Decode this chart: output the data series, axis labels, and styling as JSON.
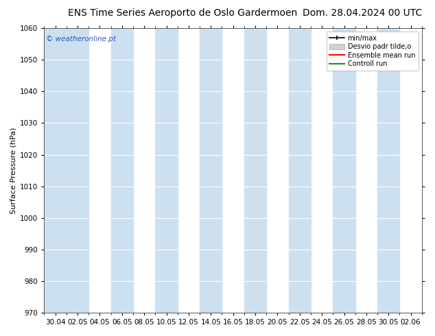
{
  "title_left": "ENS Time Series Aeroporto de Oslo Gardermoen",
  "title_right": "Dom. 28.04.2024 00 UTC",
  "ylabel": "Surface Pressure (hPa)",
  "watermark": "© weatheronline.pt",
  "ylim": [
    970,
    1060
  ],
  "yticks": [
    970,
    980,
    990,
    1000,
    1010,
    1020,
    1030,
    1040,
    1050,
    1060
  ],
  "x_tick_labels": [
    "30.04",
    "02.05",
    "04.05",
    "06.05",
    "08.05",
    "10.05",
    "12.05",
    "14.05",
    "16.05",
    "18.05",
    "20.05",
    "22.05",
    "24.05",
    "26.05",
    "28.05",
    "30.05",
    "02.06"
  ],
  "bg_color": "#ffffff",
  "plot_bg_color": "#ffffff",
  "band_color": "#cce0f0",
  "band_indices": [
    1,
    3,
    5,
    7,
    9,
    11,
    13,
    15
  ],
  "legend_labels": [
    "min/max",
    "Desvio padr tilde;o",
    "Ensemble mean run",
    "Controll run"
  ],
  "title_fontsize": 10,
  "axis_fontsize": 8,
  "tick_fontsize": 7.5,
  "watermark_color": "#2255cc"
}
